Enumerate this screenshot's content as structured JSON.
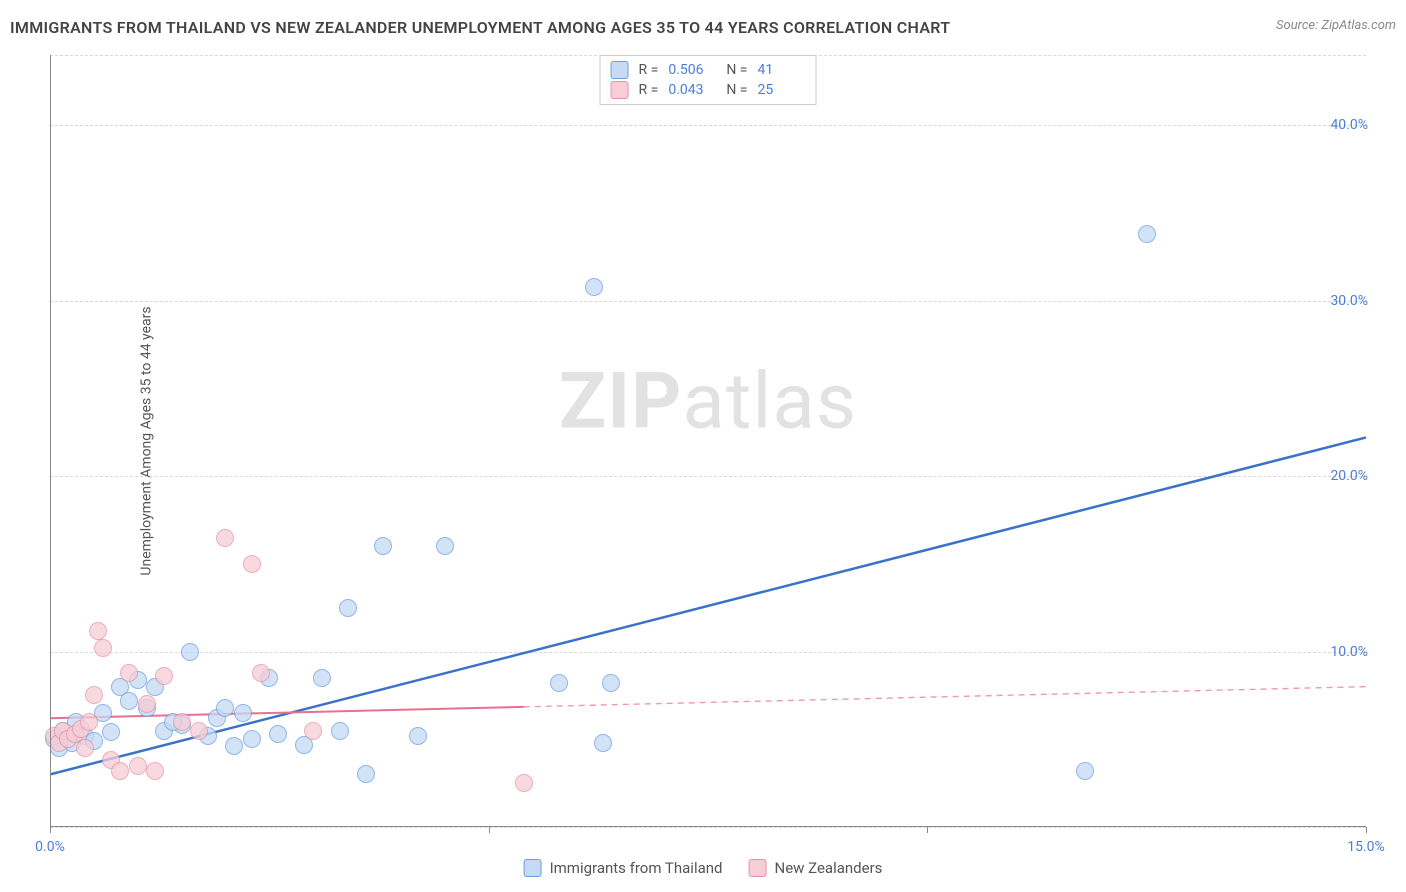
{
  "header": {
    "title": "IMMIGRANTS FROM THAILAND VS NEW ZEALANDER UNEMPLOYMENT AMONG AGES 35 TO 44 YEARS CORRELATION CHART",
    "source": "Source: ZipAtlas.com"
  },
  "watermark": {
    "part1": "ZIP",
    "part2": "atlas"
  },
  "chart": {
    "type": "scatter",
    "ylabel": "Unemployment Among Ages 35 to 44 years",
    "xlim": [
      0,
      15
    ],
    "ylim": [
      0,
      44
    ],
    "x_ticks": [
      0,
      5,
      10,
      15
    ],
    "x_tick_labels": [
      "0.0%",
      "",
      "",
      "15.0%"
    ],
    "y_ticks": [
      10,
      20,
      30,
      40
    ],
    "y_tick_labels": [
      "10.0%",
      "20.0%",
      "30.0%",
      "40.0%"
    ],
    "y_grid": [
      0,
      10,
      20,
      30,
      40,
      44
    ],
    "background_color": "#ffffff",
    "grid_color": "#d8d8d8",
    "axis_color": "#888888",
    "marker_radius": 9,
    "marker_border_width": 1,
    "series": [
      {
        "name": "Immigrants from Thailand",
        "fill": "#c4daf5",
        "stroke": "#6b9fe0",
        "fill_opacity": 0.75,
        "R": "0.506",
        "N": "41",
        "trend": {
          "x1": 0,
          "y1": 3.0,
          "x2": 15,
          "y2": 22.2,
          "color": "#3b72c9",
          "width": 2.5,
          "dash": "none",
          "solid_until_x": 15
        },
        "points": [
          [
            0.05,
            5.0
          ],
          [
            0.1,
            4.5
          ],
          [
            0.15,
            5.5
          ],
          [
            0.2,
            5.0
          ],
          [
            0.25,
            4.8
          ],
          [
            0.3,
            6.0
          ],
          [
            0.4,
            5.2
          ],
          [
            0.5,
            4.9
          ],
          [
            0.6,
            6.5
          ],
          [
            0.7,
            5.4
          ],
          [
            0.8,
            8.0
          ],
          [
            0.9,
            7.2
          ],
          [
            1.0,
            8.4
          ],
          [
            1.1,
            6.8
          ],
          [
            1.2,
            8.0
          ],
          [
            1.3,
            5.5
          ],
          [
            1.5,
            5.8
          ],
          [
            1.6,
            10.0
          ],
          [
            1.8,
            5.2
          ],
          [
            1.9,
            6.2
          ],
          [
            2.0,
            6.8
          ],
          [
            2.1,
            4.6
          ],
          [
            2.3,
            5.0
          ],
          [
            2.5,
            8.5
          ],
          [
            2.6,
            5.3
          ],
          [
            2.9,
            4.7
          ],
          [
            3.1,
            8.5
          ],
          [
            3.3,
            5.5
          ],
          [
            3.4,
            12.5
          ],
          [
            3.6,
            3.0
          ],
          [
            3.8,
            16.0
          ],
          [
            4.2,
            5.2
          ],
          [
            4.5,
            16.0
          ],
          [
            5.8,
            8.2
          ],
          [
            6.3,
            4.8
          ],
          [
            6.4,
            8.2
          ],
          [
            6.2,
            30.8
          ],
          [
            11.8,
            3.2
          ],
          [
            12.5,
            33.8
          ],
          [
            1.4,
            6.0
          ],
          [
            2.2,
            6.5
          ]
        ]
      },
      {
        "name": "New Zealanders",
        "fill": "#f7cdd6",
        "stroke": "#e593a5",
        "fill_opacity": 0.75,
        "R": "0.043",
        "N": "25",
        "trend": {
          "x1": 0,
          "y1": 6.2,
          "x2": 15,
          "y2": 8.0,
          "color": "#e86f8d",
          "width": 2,
          "dash": "6,5",
          "solid_until_x": 5.4
        },
        "points": [
          [
            0.05,
            5.2
          ],
          [
            0.1,
            4.8
          ],
          [
            0.15,
            5.5
          ],
          [
            0.2,
            5.0
          ],
          [
            0.28,
            5.3
          ],
          [
            0.35,
            5.6
          ],
          [
            0.4,
            4.5
          ],
          [
            0.45,
            6.0
          ],
          [
            0.5,
            7.5
          ],
          [
            0.55,
            11.2
          ],
          [
            0.6,
            10.2
          ],
          [
            0.7,
            3.8
          ],
          [
            0.8,
            3.2
          ],
          [
            0.9,
            8.8
          ],
          [
            1.0,
            3.5
          ],
          [
            1.1,
            7.0
          ],
          [
            1.2,
            3.2
          ],
          [
            1.3,
            8.6
          ],
          [
            1.5,
            6.0
          ],
          [
            1.7,
            5.5
          ],
          [
            2.0,
            16.5
          ],
          [
            2.3,
            15.0
          ],
          [
            2.4,
            8.8
          ],
          [
            3.0,
            5.5
          ],
          [
            5.4,
            2.5
          ]
        ]
      }
    ]
  },
  "legend_bottom": [
    {
      "label": "Immigrants from Thailand",
      "fill": "#c4daf5",
      "stroke": "#6b9fe0"
    },
    {
      "label": "New Zealanders",
      "fill": "#f7cdd6",
      "stroke": "#e593a5"
    }
  ],
  "stat_labels": {
    "R": "R =",
    "N": "N ="
  }
}
